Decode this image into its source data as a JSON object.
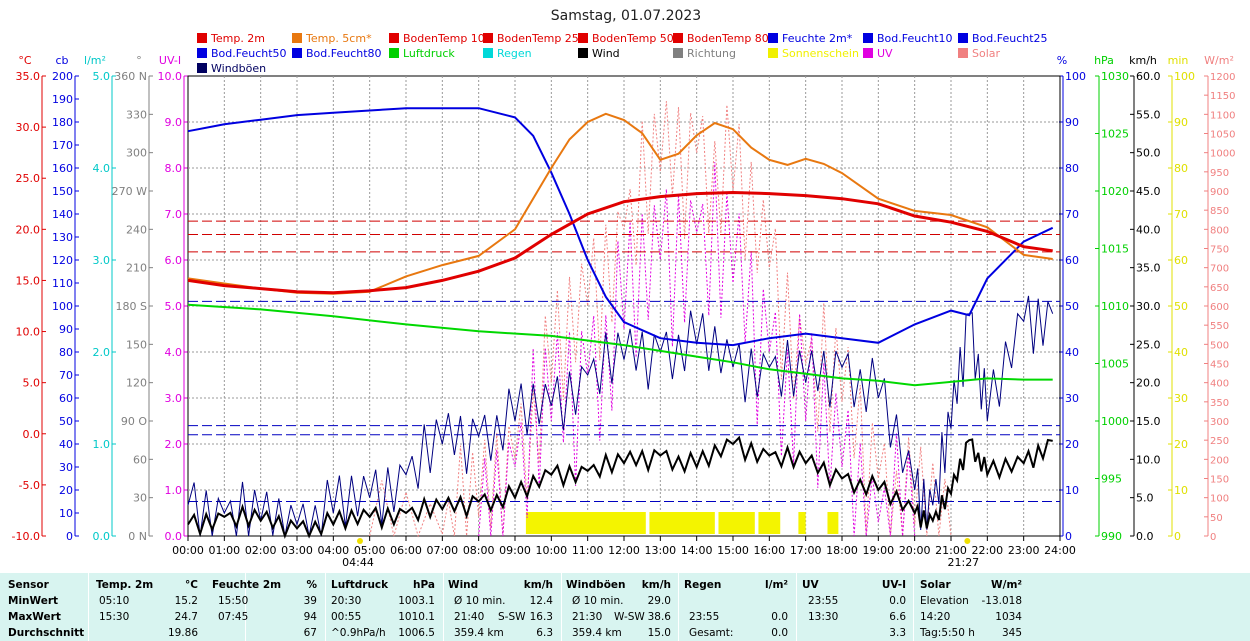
{
  "chart_data": {
    "type": "line",
    "title": "Samstag, 01.07.2023",
    "x_ticks": [
      "00:00",
      "01:00",
      "02:00",
      "03:00",
      "04:00",
      "05:00",
      "06:00",
      "07:00",
      "08:00",
      "09:00",
      "10:00",
      "11:00",
      "12:00",
      "13:00",
      "14:00",
      "15:00",
      "16:00",
      "17:00",
      "18:00",
      "19:00",
      "20:00",
      "21:00",
      "22:00",
      "23:00",
      "24:00"
    ],
    "sunrise_label": "04:44",
    "sunset_label": "21:27",
    "legend": [
      {
        "name": "Temp. 2m",
        "color": "#e00000"
      },
      {
        "name": "Temp. 5cm*",
        "color": "#e87810"
      },
      {
        "name": "BodenTemp 10",
        "color": "#e00000"
      },
      {
        "name": "BodenTemp 25",
        "color": "#e00000"
      },
      {
        "name": "BodenTemp 50",
        "color": "#e00000"
      },
      {
        "name": "BodenTemp 80",
        "color": "#e00000"
      },
      {
        "name": "Feuchte 2m*",
        "color": "#0000e0"
      },
      {
        "name": "Bod.Feucht10",
        "color": "#0000e0"
      },
      {
        "name": "Bod.Feucht25",
        "color": "#0000e0"
      },
      {
        "name": "Bod.Feucht50",
        "color": "#0000e0"
      },
      {
        "name": "Bod.Feucht80",
        "color": "#0000e0"
      },
      {
        "name": "Luftdruck",
        "color": "#00d000"
      },
      {
        "name": "Regen",
        "color": "#00d8d8"
      },
      {
        "name": "Wind",
        "color": "#000000"
      },
      {
        "name": "Richtung",
        "color": "#808080"
      },
      {
        "name": "Sonnenschein",
        "color": "#f0f000"
      },
      {
        "name": "UV",
        "color": "#e000e0"
      },
      {
        "name": "Solar",
        "color": "#f08080"
      },
      {
        "name": "Windböen",
        "color": "#000060"
      }
    ],
    "axes_left": [
      {
        "unit": "°C",
        "color": "#e00000",
        "ticks": [
          "35.0",
          "30.0",
          "25.0",
          "20.0",
          "15.0",
          "10.0",
          "5.0",
          "0.0",
          "-5.0",
          "-10.0"
        ]
      },
      {
        "unit": "cb",
        "color": "#0000e0",
        "ticks": [
          "200",
          "190",
          "180",
          "170",
          "160",
          "150",
          "140",
          "130",
          "120",
          "110",
          "100",
          "90",
          "80",
          "70",
          "60",
          "50",
          "40",
          "30",
          "20",
          "10",
          "0"
        ]
      },
      {
        "unit": "l/m²",
        "color": "#00c8c8",
        "ticks": [
          "5.0",
          "4.0",
          "3.0",
          "2.0",
          "1.0",
          "0.0"
        ]
      },
      {
        "unit": "°",
        "color": "#808080",
        "ticks": [
          "360 N",
          "330",
          "300",
          "270 W",
          "240",
          "210",
          "180 S",
          "150",
          "120",
          "90 O",
          "60",
          "30",
          "0 N"
        ]
      },
      {
        "unit": "UV-I",
        "color": "#e000e0",
        "ticks": [
          "10.0",
          "9.0",
          "8.0",
          "7.0",
          "6.0",
          "5.0",
          "4.0",
          "3.0",
          "2.0",
          "1.0",
          "0.0"
        ]
      }
    ],
    "axes_right": [
      {
        "unit": "%",
        "color": "#0000e0",
        "ticks": [
          "100",
          "90",
          "80",
          "70",
          "60",
          "50",
          "40",
          "30",
          "20",
          "10",
          "0"
        ]
      },
      {
        "unit": "hPa",
        "color": "#00d000",
        "ticks": [
          "1030",
          "1025",
          "1020",
          "1015",
          "1010",
          "1005",
          "1000",
          "995",
          "990"
        ]
      },
      {
        "unit": "km/h",
        "color": "#000000",
        "ticks": [
          "60.0",
          "55.0",
          "50.0",
          "45.0",
          "40.0",
          "35.0",
          "30.0",
          "25.0",
          "20.0",
          "15.0",
          "10.0",
          "5.0",
          "0.0"
        ]
      },
      {
        "unit": "min",
        "color": "#e0e000",
        "ticks": [
          "100",
          "90",
          "80",
          "70",
          "60",
          "50",
          "40",
          "30",
          "20",
          "10",
          "0"
        ]
      },
      {
        "unit": "W/m²",
        "color": "#f08080",
        "ticks": [
          "1200",
          "1150",
          "1100",
          "1050",
          "1000",
          "950",
          "900",
          "850",
          "800",
          "750",
          "700",
          "650",
          "600",
          "550",
          "500",
          "450",
          "400",
          "350",
          "300",
          "250",
          "200",
          "150",
          "100",
          "50",
          "0"
        ]
      }
    ],
    "series": [
      {
        "name": "Temp. 5cm*",
        "unit": "°C",
        "x": [
          0,
          1,
          2,
          3,
          4,
          5,
          6,
          7,
          8,
          9,
          10,
          10.5,
          11,
          11.5,
          12,
          12.5,
          13,
          13.5,
          14,
          14.5,
          15,
          15.5,
          16,
          16.5,
          17,
          17.5,
          18,
          19,
          20,
          21,
          22,
          23,
          23.8
        ],
        "values": [
          15.2,
          14.7,
          14.2,
          13.8,
          13.7,
          13.9,
          15.4,
          16.5,
          17.4,
          20,
          26,
          28.8,
          30.5,
          31.3,
          30.7,
          29.4,
          26.8,
          27.4,
          29.2,
          30.4,
          29.8,
          28,
          26.8,
          26.3,
          26.9,
          26.4,
          25.5,
          23,
          21.8,
          21.4,
          20.2,
          17.5,
          17.1
        ]
      },
      {
        "name": "BodenTemp 10",
        "unit": "°C",
        "x": [
          0,
          1,
          2,
          3,
          4,
          5,
          6,
          7,
          8,
          9,
          10,
          11,
          12,
          13,
          14,
          15,
          16,
          17,
          18,
          19,
          20,
          21,
          22,
          23,
          23.8
        ],
        "values": [
          15,
          14.5,
          14.2,
          13.9,
          13.8,
          14,
          14.3,
          15,
          15.9,
          17.2,
          19.5,
          21.5,
          22.7,
          23.2,
          23.5,
          23.6,
          23.5,
          23.3,
          23,
          22.5,
          21.3,
          20.7,
          19.8,
          18.3,
          17.9
        ]
      },
      {
        "name": "Feuchte 2m*",
        "unit": "%",
        "x": [
          0,
          1,
          2,
          3,
          4,
          5,
          6,
          7,
          8,
          9,
          9.5,
          10,
          10.5,
          11,
          11.5,
          12,
          13,
          14,
          15,
          16,
          17,
          18,
          19,
          20,
          21,
          21.5,
          22,
          23,
          23.8
        ],
        "values": [
          88,
          89.5,
          90.5,
          91.5,
          92,
          92.5,
          93,
          93,
          93,
          91,
          87,
          79,
          70,
          60,
          52,
          46.5,
          43,
          42,
          41.5,
          43,
          44,
          43,
          42,
          46,
          49,
          48,
          56,
          64,
          67
        ]
      },
      {
        "name": "Luftdruck",
        "unit": "hPa",
        "x": [
          0,
          2,
          4,
          6,
          8,
          10,
          12,
          14,
          15,
          16,
          17,
          18,
          19,
          20,
          21,
          22,
          23,
          23.8
        ],
        "values": [
          1010.1,
          1009.7,
          1009.1,
          1008.4,
          1007.8,
          1007.4,
          1006.6,
          1005.6,
          1005.1,
          1004.5,
          1004.1,
          1003.7,
          1003.5,
          1003.1,
          1003.4,
          1003.7,
          1003.6,
          1003.6
        ]
      },
      {
        "name": "Wind",
        "unit": "km/h",
        "x": [
          0,
          1,
          2,
          3,
          4,
          5,
          6,
          7,
          8,
          9,
          10,
          11,
          12,
          13,
          14,
          15,
          16,
          17,
          18,
          19,
          20,
          20.5,
          21,
          21.5,
          22,
          23,
          23.8
        ],
        "values": [
          1.5,
          2.5,
          2,
          1,
          1.5,
          2.5,
          3,
          3.5,
          4.5,
          5,
          8,
          8.5,
          9.5,
          10.5,
          9,
          12,
          10.5,
          9.5,
          7.5,
          6,
          3,
          2,
          5.5,
          12.5,
          8,
          9.5,
          12.4
        ]
      },
      {
        "name": "Windböen",
        "unit": "km/h",
        "x": [
          0,
          1,
          2,
          3,
          4,
          5,
          6,
          7,
          8,
          9,
          10,
          11,
          12,
          13,
          14,
          15,
          16,
          17,
          18,
          19,
          20,
          20.5,
          21,
          21.5,
          22,
          23,
          23.8
        ],
        "values": [
          4,
          3,
          2,
          1.5,
          3,
          5,
          8,
          12,
          13,
          15,
          17,
          21,
          23,
          24,
          25,
          22,
          22,
          20,
          22,
          18,
          6,
          4,
          14,
          29,
          15,
          28,
          29
        ]
      },
      {
        "name": "Solar",
        "unit": "W/m²",
        "x": [
          5,
          7,
          8,
          9,
          10,
          11,
          12,
          13,
          14,
          15,
          16,
          17,
          18,
          19,
          20,
          21
        ],
        "values": [
          0,
          5,
          50,
          200,
          400,
          600,
          800,
          950,
          1000,
          900,
          700,
          450,
          350,
          150,
          30,
          0
        ]
      },
      {
        "name": "UV",
        "unit": "UV-I",
        "x": [
          8,
          9,
          10,
          11,
          12,
          13,
          14,
          15,
          16,
          17,
          18,
          19,
          20
        ],
        "values": [
          0,
          1.5,
          2.5,
          3.5,
          4.5,
          6,
          6.6,
          5.5,
          4,
          2.5,
          1.5,
          0.3,
          0
        ]
      }
    ],
    "reference_lines": [
      {
        "name": "BodenTemp 25",
        "unit": "°C",
        "value": 20.8,
        "color": "#d00000"
      },
      {
        "name": "BodenTemp 50",
        "unit": "°C",
        "value": 19.5,
        "color": "#d00000"
      },
      {
        "name": "BodenTemp 80",
        "unit": "°C",
        "value": 17.8,
        "color": "#d00000"
      },
      {
        "name": "Bod.Feucht10",
        "unit": "cb",
        "value": 102,
        "color": "#0000c0"
      },
      {
        "name": "Bod.Feucht25",
        "unit": "cb",
        "value": 48,
        "color": "#0000c0"
      },
      {
        "name": "Bod.Feucht50",
        "unit": "cb",
        "value": 44,
        "color": "#0000c0"
      },
      {
        "name": "Bod.Feucht80",
        "unit": "cb",
        "value": 15,
        "color": "#0000c0"
      }
    ],
    "sunshine_intervals": [
      [
        9.3,
        12.6
      ],
      [
        12.7,
        14.5
      ],
      [
        14.6,
        15.6
      ],
      [
        15.7,
        16.3
      ],
      [
        16.8,
        17.0
      ],
      [
        17.6,
        17.9
      ]
    ]
  },
  "stats": {
    "header": {
      "sensor": "Sensor",
      "temp": "Temp. 2m",
      "temp_unit": "°C",
      "hum": "Feuchte 2m",
      "hum_unit": "%",
      "press": "Luftdruck",
      "press_unit": "hPa",
      "wind": "Wind",
      "wind_unit": "km/h",
      "gust": "Windböen",
      "gust_unit": "km/h",
      "rain": "Regen",
      "rain_unit": "l/m²",
      "uv": "UV",
      "uv_unit": "UV-I",
      "solar": "Solar",
      "solar_unit": "W/m²"
    },
    "rows": [
      {
        "label": "MinWert",
        "temp_time": "05:10",
        "temp": "15.2",
        "hum_time": "15:50",
        "hum": "39",
        "press_time": "20:30",
        "press": "1003.1",
        "wind_a": "Ø 10 min.",
        "wind_b": "",
        "wind": "12.4",
        "gust_a": "Ø 10 min.",
        "gust_b": "",
        "gust": "29.0",
        "rain_time": "",
        "rain": "",
        "uv_time": "23:55",
        "uv": "0.0",
        "solar_a": "Elevation",
        "solar": "-13.018"
      },
      {
        "label": "MaxWert",
        "temp_time": "15:30",
        "temp": "24.7",
        "hum_time": "07:45",
        "hum": "94",
        "press_time": "00:55",
        "press": "1010.1",
        "wind_a": "21:40",
        "wind_b": "S-SW",
        "wind": "16.3",
        "gust_a": "21:30",
        "gust_b": "W-SW",
        "gust": "38.6",
        "rain_time": "23:55",
        "rain": "0.0",
        "uv_time": "13:30",
        "uv": "6.6",
        "solar_a": "14:20",
        "solar": "1034"
      },
      {
        "label": "Durchschnitt",
        "temp_time": "",
        "temp": "19.86",
        "hum_time": "",
        "hum": "67",
        "press_time": "^0.9hPa/h",
        "press": "1006.5",
        "wind_a": "359.4 km",
        "wind_b": "",
        "wind": "6.3",
        "gust_a": "359.4 km",
        "gust_b": "",
        "gust": "15.0",
        "rain_time": "Gesamt:",
        "rain": "0.0",
        "uv_time": "",
        "uv": "3.3",
        "solar_a": "Tag:5:50 h",
        "solar": "345"
      }
    ]
  }
}
